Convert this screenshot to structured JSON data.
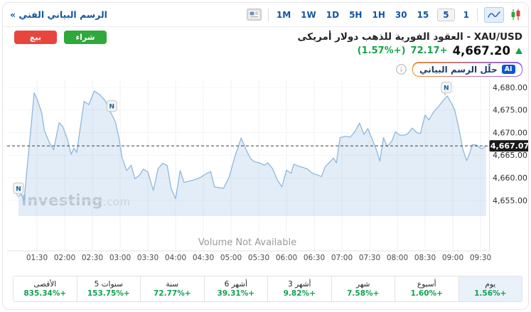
{
  "topbar": {
    "technical_chart_link": "الرسم البياني الفني »"
  },
  "toolbar": {
    "timeframes": [
      {
        "label": "1M"
      },
      {
        "label": "1W"
      },
      {
        "label": "1D"
      },
      {
        "label": "5H"
      },
      {
        "label": "1H"
      },
      {
        "label": "30"
      },
      {
        "label": "15"
      },
      {
        "label": "5",
        "selected": true
      },
      {
        "label": "1"
      }
    ],
    "chart_types": [
      {
        "name": "area",
        "selected": true
      },
      {
        "name": "candlestick",
        "selected": false
      }
    ]
  },
  "header": {
    "sell_label": "بيع",
    "buy_label": "شراء",
    "instrument_title": "XAU/USD - العقود الفورية للذهب دولار أمريكى",
    "last_price": "4,667.20",
    "change": "+72.17",
    "change_pct": "(+1.57%)",
    "ai_badge": "AI",
    "ai_analyze_label": "حلّل الرسم البياني"
  },
  "chart": {
    "watermark_bold": "Investing",
    "watermark_light": ".com"
  },
  "chart_data": {
    "type": "area",
    "symbol": "XAU/USD",
    "timeframe_selected": "5",
    "x_axis": {
      "tick_labels": [
        "01:30",
        "02:00",
        "02:30",
        "03:00",
        "03:30",
        "04:00",
        "04:30",
        "05:00",
        "05:30",
        "06:00",
        "06:30",
        "07:00",
        "07:30",
        "08:00",
        "08:30",
        "09:00",
        "09:30"
      ],
      "tick_minutes": [
        90,
        120,
        150,
        180,
        210,
        240,
        270,
        300,
        330,
        360,
        390,
        420,
        450,
        480,
        510,
        540,
        570
      ]
    },
    "y_axis": {
      "tick_values": [
        4680,
        4675,
        4670,
        4665,
        4660,
        4655
      ],
      "tick_labels": [
        "4,680.00",
        "4,675.00",
        "4,670.00",
        "4,665.00",
        "4,660.00",
        "4,655.00"
      ]
    },
    "last_price": 4667.07,
    "last_price_label": "4,667.07",
    "volume_note": "Volume Not Available",
    "points_time_minutes_price": [
      [
        70,
        4655.8
      ],
      [
        73,
        4656.5
      ],
      [
        76,
        4654.8
      ],
      [
        87,
        4678.8
      ],
      [
        90,
        4677.5
      ],
      [
        95,
        4674.5
      ],
      [
        98,
        4670.5
      ],
      [
        103,
        4668.0
      ],
      [
        108,
        4666.2
      ],
      [
        114,
        4672.2
      ],
      [
        118,
        4671.3
      ],
      [
        123,
        4668.5
      ],
      [
        127,
        4665.2
      ],
      [
        130,
        4666.6
      ],
      [
        133,
        4665.6
      ],
      [
        141,
        4676.9
      ],
      [
        146,
        4676.2
      ],
      [
        152,
        4679.2
      ],
      [
        158,
        4678.4
      ],
      [
        164,
        4677.0
      ],
      [
        171,
        4674.0
      ],
      [
        175,
        4672.3
      ],
      [
        179,
        4668.5
      ],
      [
        182,
        4664.5
      ],
      [
        187,
        4661.6
      ],
      [
        192,
        4662.8
      ],
      [
        196,
        4659.8
      ],
      [
        201,
        4660.6
      ],
      [
        205,
        4661.9
      ],
      [
        210,
        4661.3
      ],
      [
        216,
        4657.2
      ],
      [
        221,
        4662.0
      ],
      [
        226,
        4663.2
      ],
      [
        231,
        4662.7
      ],
      [
        235,
        4657.8
      ],
      [
        240,
        4655.4
      ],
      [
        245,
        4661.6
      ],
      [
        249,
        4659.0
      ],
      [
        255,
        4659.3
      ],
      [
        261,
        4659.6
      ],
      [
        267,
        4660.1
      ],
      [
        273,
        4660.9
      ],
      [
        278,
        4661.4
      ],
      [
        282,
        4658.0
      ],
      [
        288,
        4657.8
      ],
      [
        292,
        4657.7
      ],
      [
        298,
        4660.2
      ],
      [
        304,
        4664.6
      ],
      [
        311,
        4668.8
      ],
      [
        316,
        4666.4
      ],
      [
        321,
        4664.3
      ],
      [
        325,
        4663.6
      ],
      [
        331,
        4663.3
      ],
      [
        336,
        4662.8
      ],
      [
        340,
        4663.3
      ],
      [
        345,
        4662.0
      ],
      [
        350,
        4659.6
      ],
      [
        355,
        4658.0
      ],
      [
        360,
        4661.7
      ],
      [
        365,
        4661.0
      ],
      [
        368,
        4663.0
      ],
      [
        373,
        4662.6
      ],
      [
        378,
        4662.3
      ],
      [
        383,
        4661.9
      ],
      [
        388,
        4661.0
      ],
      [
        394,
        4660.6
      ],
      [
        398,
        4660.3
      ],
      [
        402,
        4662.5
      ],
      [
        407,
        4663.5
      ],
      [
        411,
        4664.4
      ],
      [
        414,
        4663.3
      ],
      [
        418,
        4668.9
      ],
      [
        424,
        4669.2
      ],
      [
        429,
        4669.0
      ],
      [
        434,
        4670.2
      ],
      [
        439,
        4672.1
      ],
      [
        444,
        4669.6
      ],
      [
        448,
        4670.9
      ],
      [
        453,
        4668.4
      ],
      [
        457,
        4666.4
      ],
      [
        461,
        4663.7
      ],
      [
        465,
        4668.9
      ],
      [
        469,
        4666.9
      ],
      [
        474,
        4668.1
      ],
      [
        478,
        4670.2
      ],
      [
        482,
        4669.5
      ],
      [
        487,
        4669.4
      ],
      [
        491,
        4669.7
      ],
      [
        496,
        4671.0
      ],
      [
        501,
        4670.0
      ],
      [
        505,
        4669.8
      ],
      [
        510,
        4673.9
      ],
      [
        514,
        4672.8
      ],
      [
        519,
        4674.5
      ],
      [
        525,
        4675.9
      ],
      [
        530,
        4677.2
      ],
      [
        534,
        4678.1
      ],
      [
        538,
        4676.7
      ],
      [
        542,
        4675.1
      ],
      [
        547,
        4670.5
      ],
      [
        551,
        4666.2
      ],
      [
        555,
        4663.8
      ],
      [
        558,
        4665.3
      ],
      [
        561,
        4667.3
      ],
      [
        565,
        4667.3
      ],
      [
        568,
        4666.9
      ],
      [
        571,
        4666.4
      ],
      [
        576,
        4667.07
      ]
    ],
    "news_markers": [
      {
        "time_minutes": 70,
        "price": 4655.8
      },
      {
        "time_minutes": 171,
        "price": 4674.0
      },
      {
        "time_minutes": 533,
        "price": 4678.1
      }
    ]
  },
  "footer": {
    "periods": [
      {
        "key": "day",
        "label": "يوم",
        "value": "+1.56%",
        "selected": true
      },
      {
        "key": "week",
        "label": "أسبوع",
        "value": "+1.60%"
      },
      {
        "key": "month",
        "label": "شهر",
        "value": "+7.58%"
      },
      {
        "key": "3-months",
        "label": "3 أشهر",
        "value": "+9.82%"
      },
      {
        "key": "6-months",
        "label": "6 أشهر",
        "value": "+39.31%"
      },
      {
        "key": "year",
        "label": "سنة",
        "value": "+72.77%"
      },
      {
        "key": "5-years",
        "label": "5 سنوات",
        "value": "+153.75%"
      },
      {
        "key": "max",
        "label": "الأقصى",
        "value": "+835.34%"
      }
    ]
  },
  "colors": {
    "accent_blue": "#1256a0",
    "positive_green": "#16a34a",
    "sell_red": "#e8463d",
    "buy_green": "#2fa83c",
    "chart_line": "#8fb8dc",
    "chart_fill_rgba": "rgba(163,197,227,0.30)",
    "last_price_tag_bg": "#191919",
    "selected_period_bg": "#e9f1fb"
  }
}
